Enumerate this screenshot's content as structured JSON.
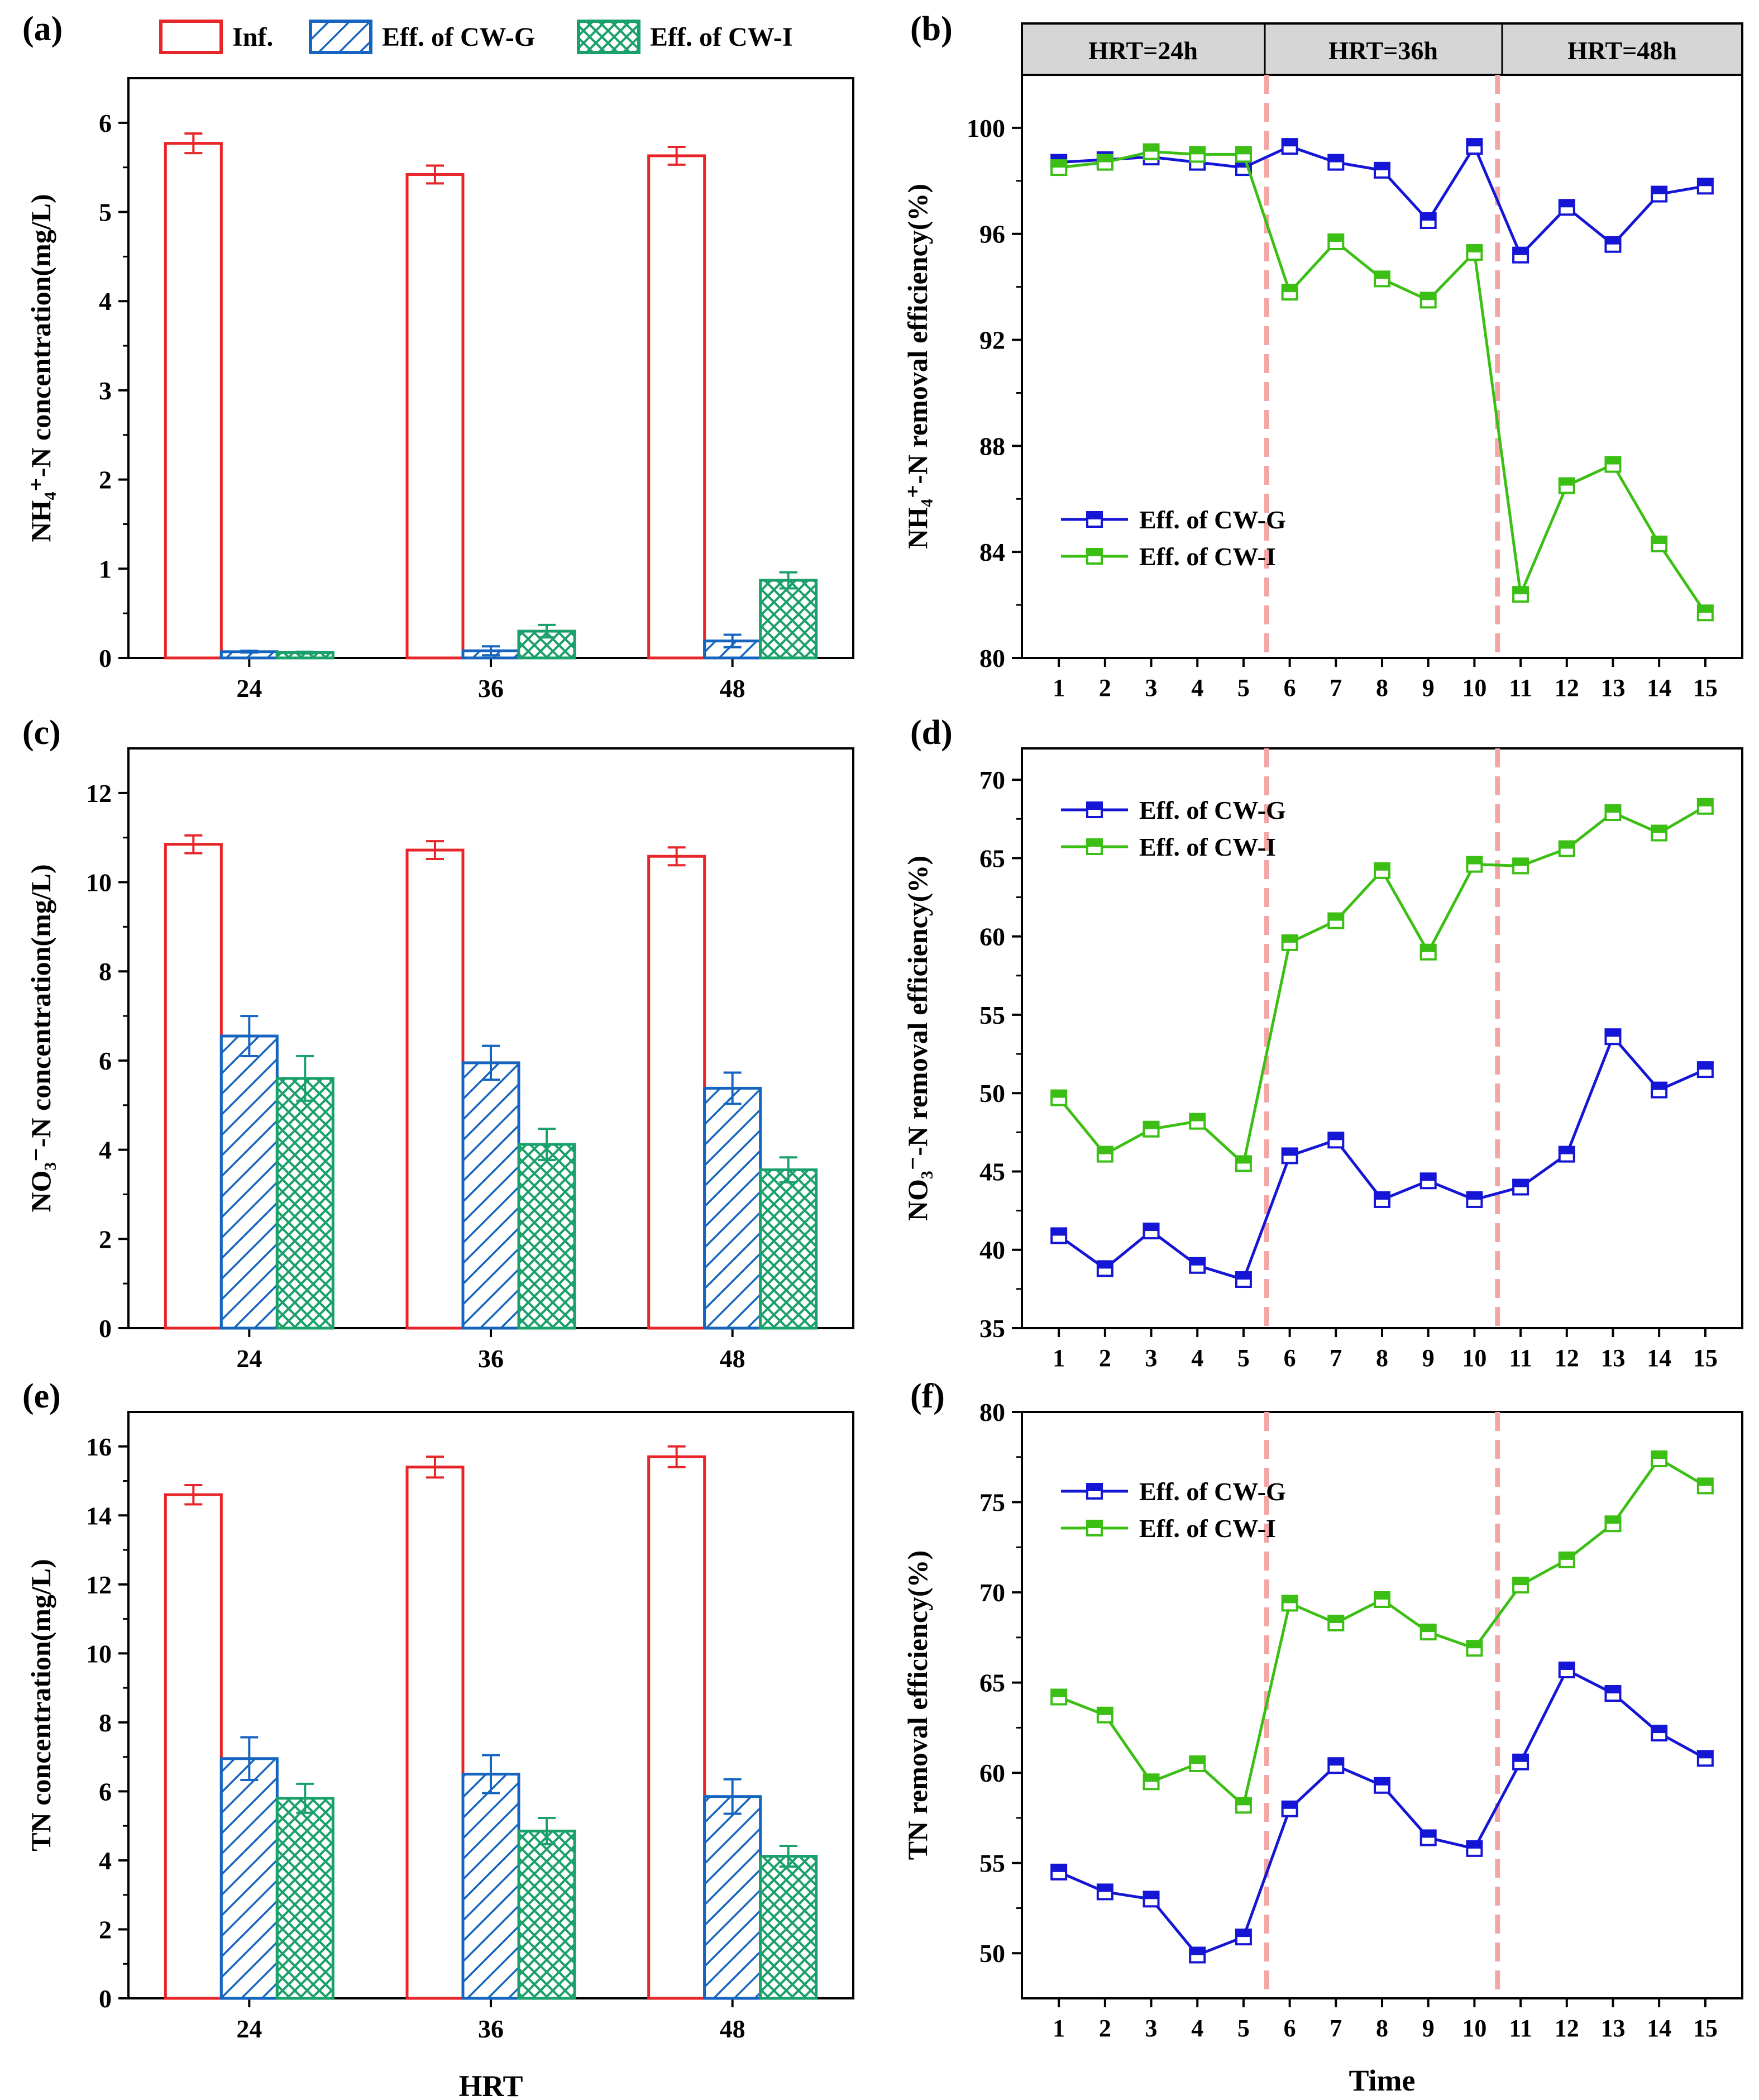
{
  "colors": {
    "inf": "#e8262a",
    "cwg_bar": "#1565c0",
    "cwi_bar": "#1aa06a",
    "cwg_line": "#1515d6",
    "cwi_line": "#3cbf14",
    "divider": "#f4a6a6",
    "header_bg": "#d6d6d6"
  },
  "legend_top": {
    "inf": "Inf.",
    "cwg": "Eff. of CW-G",
    "cwi": "Eff. of CW-I"
  },
  "hrt_header": [
    "HRT=24h",
    "HRT=36h",
    "HRT=48h"
  ],
  "chart_data": [
    {
      "id": "a",
      "panel_label": "(a)",
      "type": "bar",
      "categories": [
        "24",
        "36",
        "48"
      ],
      "xlabel": "",
      "ylabel": "NH₄⁺-N concentration(mg/L)",
      "ylim": [
        0,
        6.5
      ],
      "yticks": [
        0,
        1,
        2,
        3,
        4,
        5,
        6
      ],
      "series": [
        {
          "name": "Inf.",
          "values": [
            5.77,
            5.42,
            5.63
          ],
          "errors": [
            0.11,
            0.1,
            0.1
          ]
        },
        {
          "name": "Eff. of CW-G",
          "values": [
            0.07,
            0.08,
            0.19
          ],
          "errors": [
            0.01,
            0.05,
            0.07
          ]
        },
        {
          "name": "Eff. of CW-I",
          "values": [
            0.06,
            0.3,
            0.87
          ],
          "errors": [
            0.01,
            0.07,
            0.09
          ]
        }
      ]
    },
    {
      "id": "b",
      "panel_label": "(b)",
      "type": "line",
      "x": [
        1,
        2,
        3,
        4,
        5,
        6,
        7,
        8,
        9,
        10,
        11,
        12,
        13,
        14,
        15
      ],
      "xlabel": "",
      "ylabel": "NH₄⁺-N removal efficiency(%)",
      "ylim": [
        80,
        102
      ],
      "yticks": [
        80,
        84,
        88,
        92,
        96,
        100
      ],
      "legend": [
        "Eff. of CW-G",
        "Eff. of CW-I"
      ],
      "series": [
        {
          "name": "Eff. of CW-G",
          "values": [
            98.7,
            98.8,
            98.9,
            98.7,
            98.5,
            99.3,
            98.7,
            98.4,
            96.5,
            99.3,
            95.2,
            97.0,
            95.6,
            97.5,
            97.8
          ]
        },
        {
          "name": "Eff. of CW-I",
          "values": [
            98.5,
            98.7,
            99.1,
            99.0,
            99.0,
            93.8,
            95.7,
            94.3,
            93.5,
            95.3,
            82.4,
            86.5,
            87.3,
            84.3,
            81.7
          ]
        }
      ]
    },
    {
      "id": "c",
      "panel_label": "(c)",
      "type": "bar",
      "categories": [
        "24",
        "36",
        "48"
      ],
      "xlabel": "",
      "ylabel": "NO₃⁻-N concentration(mg/L)",
      "ylim": [
        0,
        13
      ],
      "yticks": [
        0,
        2,
        4,
        6,
        8,
        10,
        12
      ],
      "series": [
        {
          "name": "Inf.",
          "values": [
            10.85,
            10.72,
            10.58
          ],
          "errors": [
            0.2,
            0.2,
            0.2
          ]
        },
        {
          "name": "Eff. of CW-G",
          "values": [
            6.55,
            5.95,
            5.38
          ],
          "errors": [
            0.45,
            0.38,
            0.35
          ]
        },
        {
          "name": "Eff. of CW-I",
          "values": [
            5.6,
            4.12,
            3.55
          ],
          "errors": [
            0.5,
            0.35,
            0.28
          ]
        }
      ]
    },
    {
      "id": "d",
      "panel_label": "(d)",
      "type": "line",
      "x": [
        1,
        2,
        3,
        4,
        5,
        6,
        7,
        8,
        9,
        10,
        11,
        12,
        13,
        14,
        15
      ],
      "xlabel": "",
      "ylabel": "NO₃⁻-N removal efficiency(%)",
      "ylim": [
        35,
        72
      ],
      "yticks": [
        35,
        40,
        45,
        50,
        55,
        60,
        65,
        70
      ],
      "legend": [
        "Eff. of CW-G",
        "Eff. of CW-I"
      ],
      "series": [
        {
          "name": "Eff. of CW-G",
          "values": [
            40.9,
            38.8,
            41.2,
            39.0,
            38.1,
            46.0,
            47.0,
            43.2,
            44.4,
            43.2,
            44.0,
            46.1,
            53.6,
            50.2,
            51.5
          ]
        },
        {
          "name": "Eff. of CW-I",
          "values": [
            49.7,
            46.1,
            47.7,
            48.2,
            45.5,
            59.6,
            61.0,
            64.2,
            59.0,
            64.6,
            64.5,
            65.6,
            67.9,
            66.6,
            68.3
          ]
        }
      ]
    },
    {
      "id": "e",
      "panel_label": "(e)",
      "type": "bar",
      "categories": [
        "24",
        "36",
        "48"
      ],
      "xlabel": "HRT",
      "ylabel": "TN concentration(mg/L)",
      "ylim": [
        0,
        17
      ],
      "yticks": [
        0,
        2,
        4,
        6,
        8,
        10,
        12,
        14,
        16
      ],
      "series": [
        {
          "name": "Inf.",
          "values": [
            14.6,
            15.4,
            15.7
          ],
          "errors": [
            0.28,
            0.3,
            0.3
          ]
        },
        {
          "name": "Eff. of CW-G",
          "values": [
            6.95,
            6.5,
            5.85
          ],
          "errors": [
            0.62,
            0.55,
            0.5
          ]
        },
        {
          "name": "Eff. of CW-I",
          "values": [
            5.8,
            4.85,
            4.12
          ],
          "errors": [
            0.42,
            0.38,
            0.3
          ]
        }
      ]
    },
    {
      "id": "f",
      "panel_label": "(f)",
      "type": "line",
      "x": [
        1,
        2,
        3,
        4,
        5,
        6,
        7,
        8,
        9,
        10,
        11,
        12,
        13,
        14,
        15
      ],
      "xlabel": "Time",
      "ylabel": "TN removal efficiency(%)",
      "ylim": [
        47.5,
        80
      ],
      "yticks": [
        50,
        55,
        60,
        65,
        70,
        75,
        80
      ],
      "legend": [
        "Eff. of CW-G",
        "Eff. of CW-I"
      ],
      "series": [
        {
          "name": "Eff. of CW-G",
          "values": [
            54.5,
            53.4,
            53.0,
            49.9,
            50.9,
            58.0,
            60.4,
            59.3,
            56.4,
            55.8,
            60.6,
            65.7,
            64.4,
            62.2,
            60.8
          ]
        },
        {
          "name": "Eff. of CW-I",
          "values": [
            64.2,
            63.2,
            59.5,
            60.5,
            58.2,
            69.4,
            68.3,
            69.6,
            67.8,
            66.9,
            70.4,
            71.8,
            73.8,
            77.4,
            75.9
          ]
        }
      ]
    }
  ]
}
